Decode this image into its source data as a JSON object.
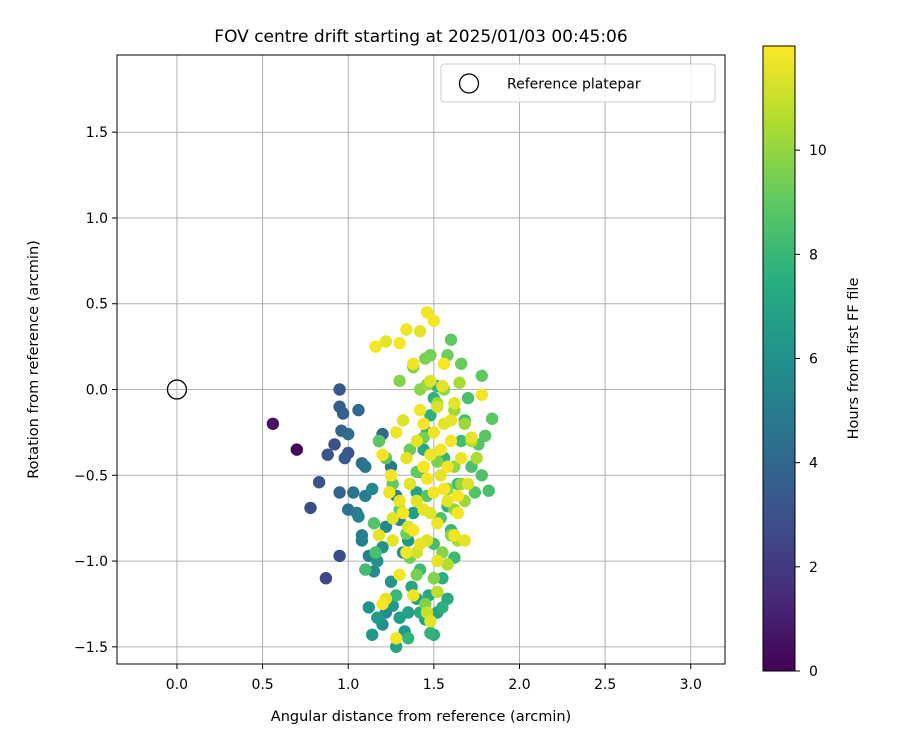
{
  "chart_data": {
    "type": "scatter",
    "title": "FOV centre drift starting at 2025/01/03 00:45:06",
    "xlabel": "Angular distance from reference (arcmin)",
    "ylabel": "Rotation from reference (arcmin)",
    "xlim": [
      -0.35,
      3.2
    ],
    "ylim": [
      -1.6,
      1.95
    ],
    "xticks": [
      0.0,
      0.5,
      1.0,
      1.5,
      2.0,
      2.5,
      3.0
    ],
    "yticks": [
      -1.5,
      -1.0,
      -0.5,
      0.0,
      0.5,
      1.0,
      1.5
    ],
    "xtick_labels": [
      "0.0",
      "0.5",
      "1.0",
      "1.5",
      "2.0",
      "2.5",
      "3.0"
    ],
    "ytick_labels": [
      "−1.5",
      "−1.0",
      "−0.5",
      "0.0",
      "0.5",
      "1.0",
      "1.5"
    ],
    "grid": true,
    "legend": {
      "position": "top-right",
      "entries": [
        {
          "label": "Reference platepar",
          "marker": "open-circle"
        }
      ]
    },
    "reference_point": {
      "x": 0.0,
      "y": 0.0
    },
    "colorbar": {
      "label": "Hours from first FF file",
      "colormap": "viridis",
      "range": [
        0,
        12
      ],
      "ticks": [
        0,
        2,
        4,
        6,
        8,
        10
      ],
      "tick_labels": [
        "0",
        "2",
        "4",
        "6",
        "8",
        "10"
      ]
    },
    "points": [
      [
        0.7,
        -0.35,
        0.1
      ],
      [
        0.56,
        -0.2,
        0.6
      ],
      [
        0.87,
        -1.1,
        2.6
      ],
      [
        0.95,
        -0.97,
        2.8
      ],
      [
        0.78,
        -0.69,
        2.9
      ],
      [
        0.83,
        -0.54,
        3.0
      ],
      [
        0.88,
        -0.38,
        3.1
      ],
      [
        0.92,
        -0.32,
        3.0
      ],
      [
        0.95,
        0.0,
        3.3
      ],
      [
        0.95,
        -0.1,
        3.5
      ],
      [
        0.97,
        -0.14,
        3.6
      ],
      [
        0.98,
        -0.4,
        3.4
      ],
      [
        1.0,
        -0.37,
        3.2
      ],
      [
        0.96,
        -0.24,
        3.9
      ],
      [
        1.0,
        -0.26,
        4.2
      ],
      [
        0.95,
        -0.6,
        3.8
      ],
      [
        1.0,
        -0.7,
        4.4
      ],
      [
        1.03,
        -0.6,
        4.6
      ],
      [
        1.06,
        -0.12,
        4.1
      ],
      [
        1.08,
        -0.43,
        4.3
      ],
      [
        1.1,
        -0.45,
        4.7
      ],
      [
        1.05,
        -0.72,
        4.9
      ],
      [
        1.08,
        -0.85,
        5.0
      ],
      [
        1.08,
        -0.88,
        5.2
      ],
      [
        1.12,
        -0.97,
        5.3
      ],
      [
        1.1,
        -0.62,
        5.1
      ],
      [
        1.06,
        -0.74,
        5.4
      ],
      [
        1.14,
        -0.58,
        5.6
      ],
      [
        1.15,
        -1.06,
        5.8
      ],
      [
        1.17,
        -1.0,
        6.0
      ],
      [
        1.12,
        -1.27,
        6.2
      ],
      [
        1.14,
        -1.43,
        6.4
      ],
      [
        1.17,
        -1.33,
        6.6
      ],
      [
        1.2,
        -1.37,
        6.0
      ],
      [
        1.22,
        -1.3,
        5.8
      ],
      [
        1.25,
        -1.12,
        6.2
      ],
      [
        1.26,
        -1.26,
        6.3
      ],
      [
        1.28,
        -1.5,
        7.0
      ],
      [
        1.3,
        -1.33,
        6.7
      ],
      [
        1.33,
        -1.41,
        6.5
      ],
      [
        1.35,
        -1.3,
        6.8
      ],
      [
        1.37,
        -1.15,
        7.1
      ],
      [
        1.4,
        -1.22,
        6.9
      ],
      [
        1.42,
        -1.3,
        7.3
      ],
      [
        1.45,
        -1.34,
        7.0
      ],
      [
        1.47,
        -1.2,
        7.2
      ],
      [
        1.5,
        -1.43,
        7.4
      ],
      [
        1.52,
        -1.3,
        7.0
      ],
      [
        1.55,
        -1.27,
        7.6
      ],
      [
        1.55,
        -1.1,
        7.5
      ],
      [
        1.58,
        -1.22,
        7.3
      ],
      [
        1.2,
        -0.26,
        4.0
      ],
      [
        1.18,
        -0.3,
        4.5
      ],
      [
        1.25,
        -0.45,
        4.8
      ],
      [
        1.28,
        -0.62,
        5.2
      ],
      [
        1.3,
        -0.76,
        5.5
      ],
      [
        1.22,
        -0.8,
        5.7
      ],
      [
        1.2,
        -0.92,
        6.0
      ],
      [
        1.32,
        -0.95,
        6.2
      ],
      [
        1.35,
        -0.88,
        6.4
      ],
      [
        1.38,
        -0.72,
        6.6
      ],
      [
        1.4,
        -0.6,
        6.8
      ],
      [
        1.42,
        -0.48,
        7.0
      ],
      [
        1.44,
        -0.35,
        7.2
      ],
      [
        1.46,
        -0.25,
        7.4
      ],
      [
        1.48,
        -0.15,
        7.6
      ],
      [
        1.5,
        -0.05,
        7.8
      ],
      [
        1.52,
        0.02,
        8.0
      ],
      [
        1.56,
        -0.4,
        7.7
      ],
      [
        1.58,
        -0.68,
        7.9
      ],
      [
        1.6,
        -0.82,
        8.0
      ],
      [
        1.62,
        -0.98,
        8.1
      ],
      [
        1.64,
        -0.55,
        8.2
      ],
      [
        1.66,
        -0.3,
        8.3
      ],
      [
        1.68,
        -0.18,
        8.4
      ],
      [
        1.7,
        -0.05,
        8.5
      ],
      [
        1.72,
        -0.45,
        8.6
      ],
      [
        1.74,
        -0.6,
        8.7
      ],
      [
        1.76,
        -0.32,
        8.8
      ],
      [
        1.78,
        -0.5,
        8.6
      ],
      [
        1.8,
        -0.27,
        8.8
      ],
      [
        1.82,
        -0.59,
        8.5
      ],
      [
        1.84,
        -0.17,
        8.9
      ],
      [
        1.78,
        0.08,
        9.0
      ],
      [
        1.66,
        0.15,
        9.2
      ],
      [
        1.6,
        0.29,
        9.0
      ],
      [
        1.58,
        0.2,
        9.3
      ],
      [
        1.48,
        0.2,
        9.4
      ],
      [
        1.45,
        0.18,
        9.6
      ],
      [
        1.38,
        0.13,
        9.8
      ],
      [
        1.3,
        0.05,
        9.7
      ],
      [
        1.42,
        0.0,
        9.9
      ],
      [
        1.46,
        0.03,
        10.1
      ],
      [
        1.52,
        -0.08,
        10.2
      ],
      [
        1.56,
        0.0,
        10.0
      ],
      [
        1.62,
        -0.12,
        10.3
      ],
      [
        1.65,
        0.04,
        10.4
      ],
      [
        1.68,
        -0.2,
        10.2
      ],
      [
        1.72,
        -0.3,
        10.6
      ],
      [
        1.75,
        -0.4,
        10.5
      ],
      [
        1.66,
        -0.55,
        10.1
      ],
      [
        1.62,
        -0.7,
        10.0
      ],
      [
        1.6,
        -0.85,
        9.9
      ],
      [
        1.55,
        -0.95,
        9.8
      ],
      [
        1.5,
        -1.1,
        9.7
      ],
      [
        1.45,
        -1.25,
        9.6
      ],
      [
        1.4,
        -1.08,
        9.5
      ],
      [
        1.36,
        -0.98,
        9.4
      ],
      [
        1.34,
        -0.84,
        9.3
      ],
      [
        1.3,
        -0.7,
        9.2
      ],
      [
        1.26,
        -0.55,
        9.1
      ],
      [
        1.22,
        -0.4,
        9.0
      ],
      [
        1.18,
        -0.3,
        8.9
      ],
      [
        1.15,
        -0.78,
        8.7
      ],
      [
        1.16,
        -0.95,
        8.5
      ],
      [
        1.1,
        -1.05,
        8.3
      ],
      [
        1.28,
        -1.2,
        8.1
      ],
      [
        1.35,
        -1.45,
        7.9
      ],
      [
        1.48,
        -1.42,
        7.8
      ],
      [
        1.42,
        -1.05,
        8.2
      ],
      [
        1.5,
        -0.9,
        8.4
      ],
      [
        1.54,
        -0.75,
        8.6
      ],
      [
        1.46,
        -0.62,
        8.8
      ],
      [
        1.4,
        -0.48,
        9.0
      ],
      [
        1.36,
        -0.35,
        9.2
      ],
      [
        1.44,
        -0.28,
        9.4
      ],
      [
        1.52,
        -0.42,
        9.6
      ],
      [
        1.58,
        -0.58,
        9.8
      ],
      [
        1.62,
        -0.45,
        10.0
      ],
      [
        1.68,
        -0.65,
        10.2
      ],
      [
        1.64,
        -0.88,
        10.4
      ],
      [
        1.58,
        -1.02,
        10.6
      ],
      [
        1.52,
        -1.18,
        10.8
      ],
      [
        1.46,
        -1.3,
        11.0
      ],
      [
        1.4,
        -0.95,
        11.2
      ],
      [
        1.35,
        -0.8,
        11.4
      ],
      [
        1.3,
        -0.65,
        11.6
      ],
      [
        1.25,
        -0.5,
        11.8
      ],
      [
        1.2,
        -0.38,
        11.9
      ],
      [
        1.16,
        0.25,
        11.8
      ],
      [
        1.22,
        0.28,
        11.6
      ],
      [
        1.3,
        0.27,
        11.9
      ],
      [
        1.34,
        0.35,
        11.7
      ],
      [
        1.42,
        0.34,
        11.5
      ],
      [
        1.46,
        0.45,
        11.8
      ],
      [
        1.5,
        0.4,
        11.9
      ],
      [
        1.38,
        0.15,
        11.7
      ],
      [
        1.48,
        0.05,
        11.4
      ],
      [
        1.55,
        0.02,
        11.6
      ],
      [
        1.52,
        -0.1,
        11.3
      ],
      [
        1.56,
        -0.2,
        11.5
      ],
      [
        1.6,
        -0.3,
        11.8
      ],
      [
        1.44,
        -0.2,
        11.9
      ],
      [
        1.4,
        -0.3,
        11.6
      ],
      [
        1.48,
        -0.38,
        11.7
      ],
      [
        1.54,
        -0.5,
        11.5
      ],
      [
        1.5,
        -0.6,
        11.8
      ],
      [
        1.44,
        -0.7,
        11.6
      ],
      [
        1.38,
        -0.82,
        11.9
      ],
      [
        1.46,
        -0.88,
        11.4
      ],
      [
        1.52,
        -0.78,
        11.7
      ],
      [
        1.58,
        -0.65,
        11.5
      ],
      [
        1.62,
        -0.85,
        11.8
      ],
      [
        1.68,
        -0.88,
        11.6
      ],
      [
        1.64,
        -0.72,
        11.9
      ],
      [
        1.7,
        -0.55,
        11.4
      ],
      [
        1.66,
        -0.4,
        11.7
      ],
      [
        1.72,
        -0.28,
        11.5
      ],
      [
        1.78,
        -0.03,
        11.8
      ],
      [
        1.6,
        -0.18,
        11.6
      ],
      [
        1.56,
        -0.58,
        11.9
      ],
      [
        1.32,
        -0.18,
        11.4
      ],
      [
        1.28,
        -0.25,
        11.7
      ],
      [
        1.26,
        -0.75,
        11.5
      ],
      [
        1.3,
        -1.08,
        11.8
      ],
      [
        1.22,
        -1.22,
        11.6
      ],
      [
        1.2,
        -1.25,
        11.9
      ],
      [
        1.38,
        -1.2,
        11.7
      ],
      [
        1.48,
        -1.35,
        11.5
      ],
      [
        1.28,
        -1.45,
        11.8
      ],
      [
        1.52,
        -1.0,
        11.6
      ],
      [
        1.44,
        -0.45,
        11.9
      ],
      [
        1.36,
        -0.55,
        11.5
      ],
      [
        1.24,
        -0.6,
        11.7
      ],
      [
        1.18,
        -0.85,
        11.6
      ],
      [
        1.56,
        0.15,
        11.9
      ],
      [
        1.62,
        -0.08,
        11.5
      ],
      [
        1.5,
        -0.25,
        11.7
      ],
      [
        1.42,
        -0.12,
        11.8
      ],
      [
        1.34,
        -0.4,
        11.6
      ],
      [
        1.46,
        -0.52,
        11.9
      ],
      [
        1.4,
        -0.65,
        11.5
      ],
      [
        1.34,
        -0.95,
        11.8
      ],
      [
        1.42,
        -0.9,
        11.6
      ],
      [
        1.58,
        -0.45,
        11.7
      ],
      [
        1.64,
        -0.62,
        11.9
      ],
      [
        1.48,
        -0.72,
        11.5
      ],
      [
        1.32,
        -0.72,
        11.8
      ],
      [
        1.26,
        -0.88,
        11.6
      ],
      [
        1.54,
        -0.35,
        11.8
      ]
    ]
  }
}
